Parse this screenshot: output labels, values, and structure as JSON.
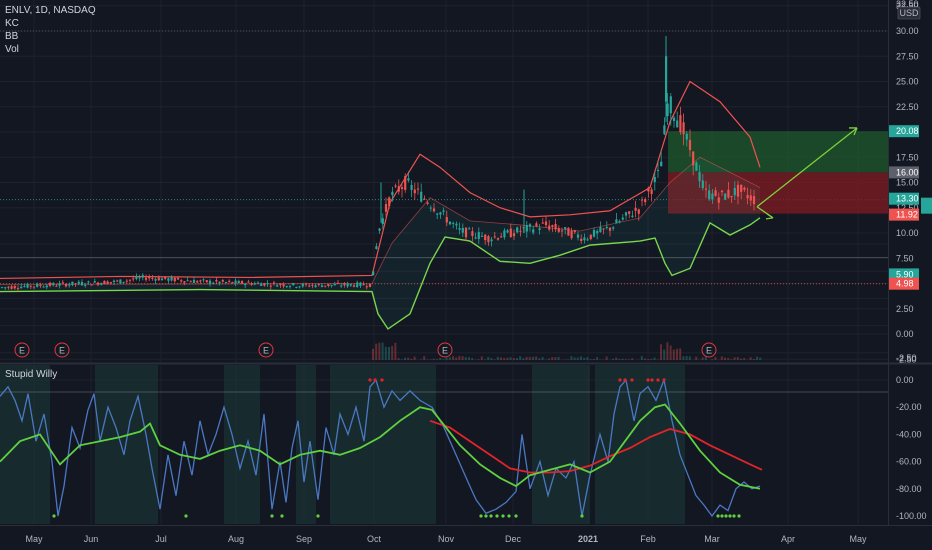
{
  "header": {
    "symbol_line": "ENLV, 1D, NASDAQ",
    "indicators": [
      "KC",
      "BB",
      "Vol"
    ],
    "currency": "USD",
    "indicator_name": "Stupid Willy"
  },
  "colors": {
    "bg": "#131722",
    "grid": "#1e222d",
    "candle_up": "#26a69a",
    "candle_down": "#ef5350",
    "kc_band": "#ef5350",
    "bb_band": "#7cd94a",
    "willy": "#4a78c2",
    "ma_green": "#5fd13f",
    "ma_red": "#e0242a",
    "zone_green": "#1e5a2c",
    "zone_red": "#7a1c23",
    "arrow": "#7fd13b",
    "earnings": "#e03a3a"
  },
  "chart_data": [
    {
      "type": "candlestick",
      "title": "ENLV, 1D, NASDAQ",
      "x_ticks": [
        "May",
        "Jun",
        "Jul",
        "Aug",
        "Sep",
        "Oct",
        "Nov",
        "Dec",
        "2021",
        "Feb",
        "Mar",
        "Apr",
        "May"
      ],
      "y_ticks": [
        -2.5,
        0.0,
        2.5,
        5.0,
        7.5,
        10.0,
        12.5,
        15.0,
        17.5,
        20.0,
        22.5,
        25.0,
        27.5,
        30.0,
        32.5
      ],
      "ylim": [
        -2.5,
        32.5
      ],
      "grid": true,
      "price_labels": [
        {
          "value": "20.08",
          "color": "#26a69a"
        },
        {
          "value": "16.00",
          "color": "#5d606b"
        },
        {
          "value": "13.30",
          "color": "#26a69a"
        },
        {
          "value": "11.92",
          "color": "#ef5350"
        },
        {
          "value": "5.90",
          "color": "#26a69a"
        },
        {
          "value": "4.98",
          "color": "#ef5350"
        }
      ],
      "earnings_markers": [
        "E",
        "E",
        "E",
        "E",
        "E"
      ],
      "trade_zone": {
        "entry": 13.3,
        "target": 20.08,
        "stop": 11.92,
        "upper_ref": 16.0
      },
      "price_series": [
        {
          "date": "May",
          "value": 4.6
        },
        {
          "date": "Jun",
          "value": 4.9
        },
        {
          "date": "Jul",
          "value": 5.5
        },
        {
          "date": "Aug",
          "value": 5.1
        },
        {
          "date": "Sep",
          "value": 4.7
        },
        {
          "date": "Oct",
          "value": 4.8
        },
        {
          "date": "Oct",
          "value": 13.5
        },
        {
          "date": "Nov",
          "value": 10.0
        },
        {
          "date": "Dec",
          "value": 10.2
        },
        {
          "date": "2021",
          "value": 9.5
        },
        {
          "date": "Feb",
          "value": 15.0
        },
        {
          "date": "Feb",
          "value": 21.0
        },
        {
          "date": "Mar",
          "value": 13.3
        }
      ],
      "kc_upper": [
        {
          "date": "May",
          "value": 5.5
        },
        {
          "date": "Oct",
          "value": 5.6
        },
        {
          "date": "Oct",
          "value": 17.8
        },
        {
          "date": "Nov",
          "value": 14.0
        },
        {
          "date": "Dec",
          "value": 11.8
        },
        {
          "date": "Feb",
          "value": 14.5
        },
        {
          "date": "Feb",
          "value": 25.0
        },
        {
          "date": "Mar",
          "value": 16.5
        }
      ],
      "bb_lower": [
        {
          "date": "May",
          "value": 4.3
        },
        {
          "date": "Oct",
          "value": 4.4
        },
        {
          "date": "Oct",
          "value": 0.5
        },
        {
          "date": "Nov",
          "value": 9.5
        },
        {
          "date": "Dec",
          "value": 7.0
        },
        {
          "date": "Feb",
          "value": 9.2
        },
        {
          "date": "Feb",
          "value": 5.8
        },
        {
          "date": "Mar",
          "value": 11.5
        }
      ]
    },
    {
      "type": "line",
      "title": "Stupid Willy",
      "y_ticks": [
        0.0,
        -20.0,
        -40.0,
        -60.0,
        -80.0,
        -100.0
      ],
      "ylim": [
        -105,
        5
      ],
      "series": [
        {
          "values": [
            -15,
            -50,
            -100,
            -20,
            -60,
            -10,
            -90,
            -30,
            -70,
            -20,
            -95,
            -15,
            -100,
            -5,
            0,
            -30,
            -50,
            -90,
            -95,
            -80,
            -20,
            -100,
            -60,
            -5,
            0,
            -60,
            -90,
            -85,
            -80
          ]
        },
        {
          "values": [
            -60,
            -30,
            -50,
            -35,
            -55,
            -45,
            -60,
            -35,
            -50,
            -45,
            -60,
            -25,
            -15,
            -50,
            -80,
            -60,
            -70,
            -35,
            -15,
            -45,
            -70,
            -78
          ]
        },
        {
          "values": [
            -35,
            -60,
            -80,
            -68,
            -60,
            -40,
            -65
          ]
        }
      ]
    }
  ]
}
